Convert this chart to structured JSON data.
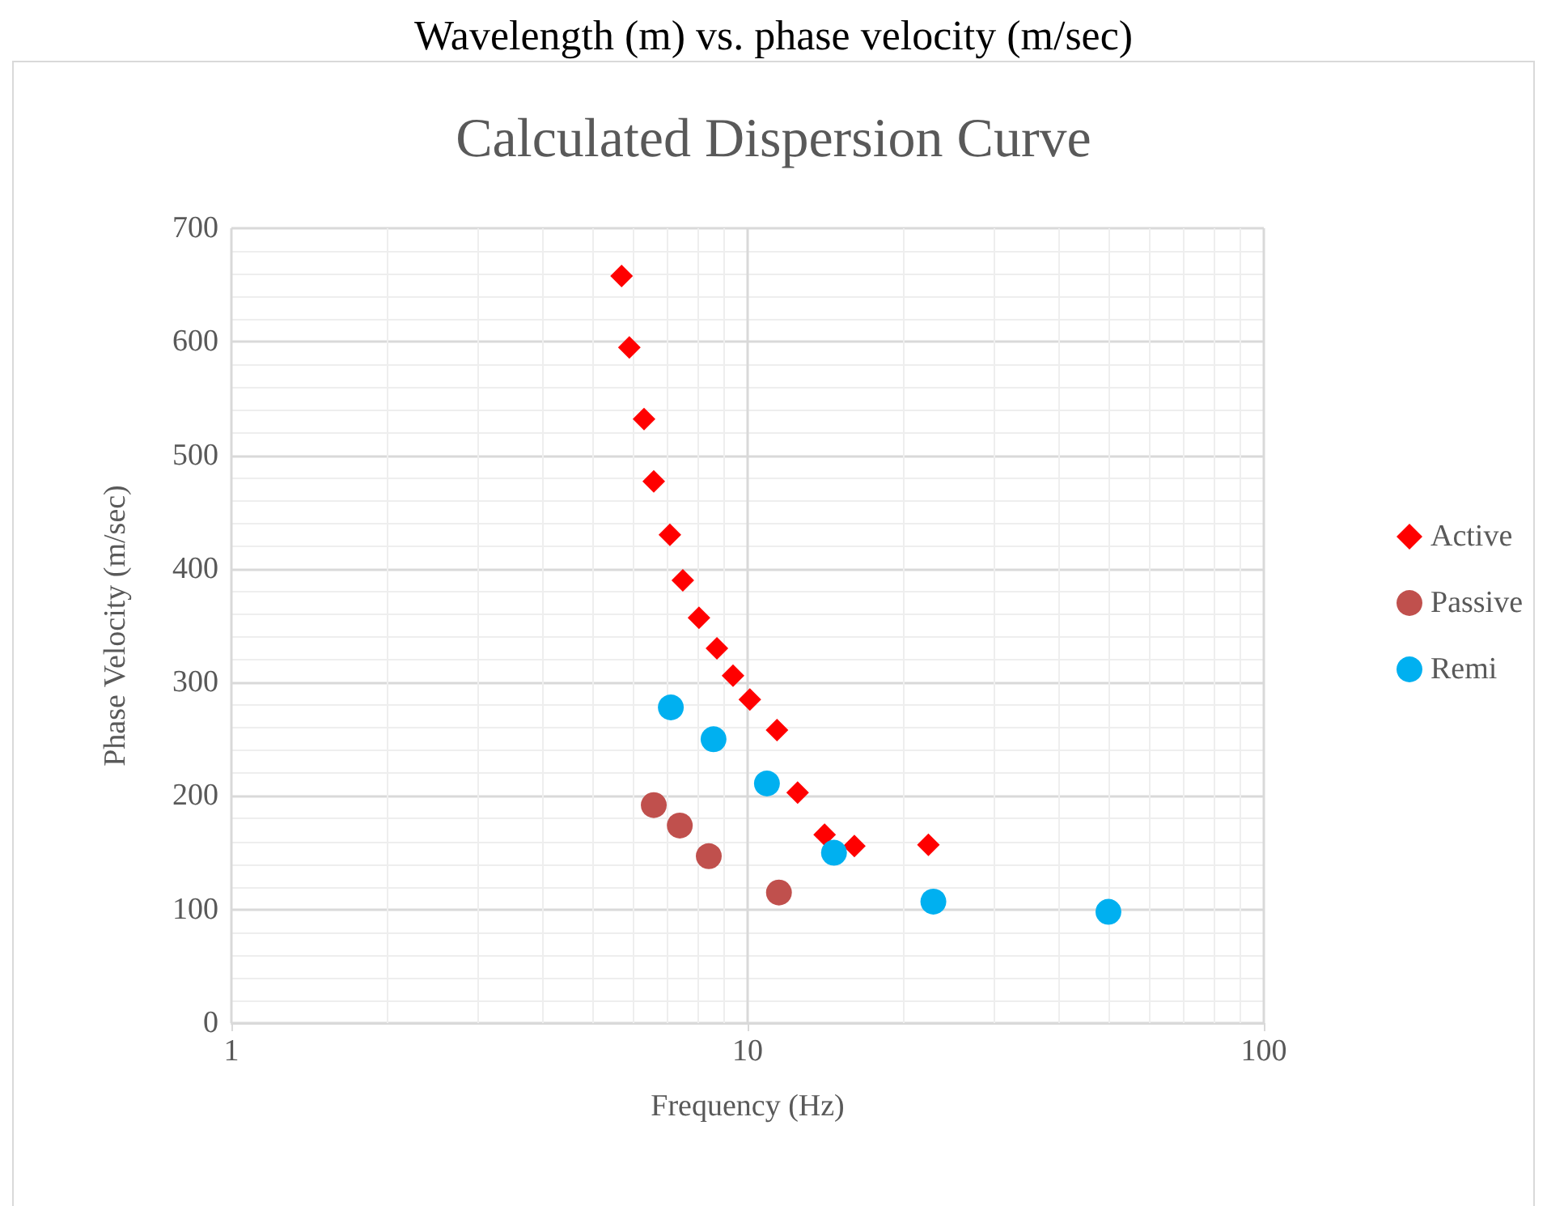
{
  "chart_data": {
    "type": "scatter",
    "title": "Calculated Dispersion Curve",
    "subtitle": "Wavelength (m) vs. phase velocity (m/sec)",
    "xlabel": "Frequency (Hz)",
    "ylabel": "Phase Velocity (m/sec)",
    "log": "x",
    "xlim": [
      1,
      100
    ],
    "xticks": [
      1,
      10,
      100
    ],
    "ylim": [
      0,
      700
    ],
    "yticks": [
      0,
      100,
      200,
      300,
      400,
      500,
      600,
      700
    ],
    "grid": true,
    "legend": "right",
    "series": [
      {
        "name": "Active",
        "color": "#ff0000",
        "marker": "diamond",
        "x": [
          5.7,
          5.9,
          6.3,
          6.58,
          7.07,
          7.49,
          8.05,
          8.72,
          9.37,
          10.1,
          11.4,
          12.5,
          14.1,
          16.1,
          22.4
        ],
        "values": [
          658,
          595,
          532,
          477,
          430,
          390,
          357,
          330,
          306,
          285,
          258,
          203,
          166,
          156,
          157
        ]
      },
      {
        "name": "Passive",
        "color": "#c0504d",
        "marker": "circle",
        "x": [
          6.58,
          7.39,
          8.41,
          11.5
        ],
        "values": [
          192,
          174,
          147,
          115
        ]
      },
      {
        "name": "Remi",
        "color": "#00b0f0",
        "marker": "circle",
        "x": [
          7.1,
          8.59,
          10.9,
          14.7,
          22.9,
          50.0
        ],
        "values": [
          278,
          250,
          211,
          150,
          107,
          98
        ]
      }
    ]
  }
}
